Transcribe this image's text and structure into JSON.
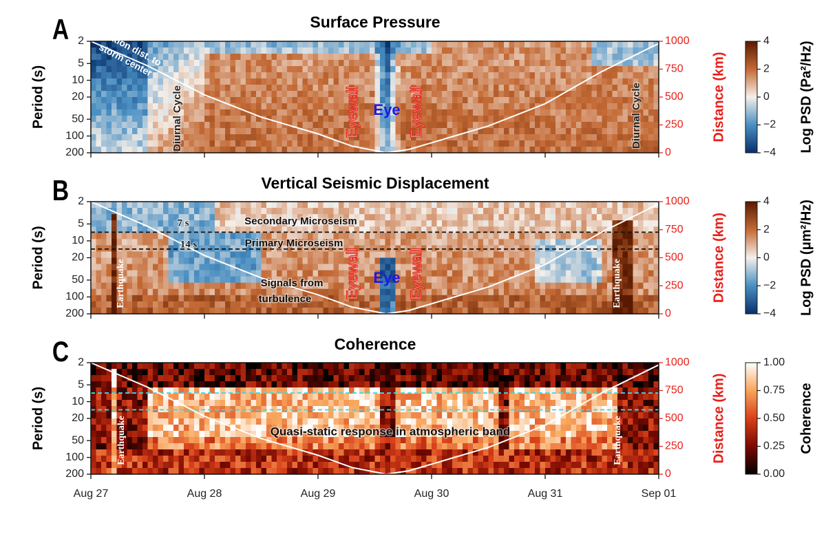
{
  "chart_data": [
    {
      "type": "spectrogram",
      "panel_label": "A",
      "title": "Surface Pressure",
      "ylabel": "Period (s)",
      "y2label": "Distance (km)",
      "log_scale": true,
      "ylim": [
        2,
        200
      ],
      "yticks": [
        2,
        5,
        10,
        20,
        50,
        100,
        200
      ],
      "y2lim": [
        0,
        1000
      ],
      "y2ticks": [
        0,
        250,
        500,
        750,
        1000
      ],
      "y2color": "#e8201a",
      "xlim": [
        0,
        5
      ],
      "clabel": "Log PSD (Pa²/Hz)",
      "clim": [
        -4,
        4
      ],
      "cticks": [
        {
          "value": -4,
          "label": "−4"
        },
        {
          "value": -2,
          "label": "−2"
        },
        0,
        2,
        4
      ],
      "colormap": [
        "#08306b",
        "#4a8fc2",
        "#f5efe9",
        "#c46a35",
        "#5a1a00"
      ],
      "series": [
        {
          "color": "#ffffff",
          "axis": "y2",
          "x": [
            0,
            0.5,
            1,
            1.5,
            2,
            2.3,
            2.6,
            2.8,
            3,
            3.5,
            4,
            4.5,
            5
          ],
          "values": [
            1000,
            780,
            520,
            320,
            170,
            60,
            0,
            30,
            90,
            240,
            440,
            730,
            980
          ]
        }
      ],
      "annotations": [
        {
          "text": "Station dist. to",
          "color": "#ffffff"
        },
        {
          "text": "storm center",
          "color": "#ffffff"
        },
        {
          "text": "Diurnal Cycle",
          "color": "#222222"
        },
        {
          "text": "Eyewall",
          "color": "#e8201a"
        },
        {
          "text": "Eye",
          "color": "#1a1ae6"
        },
        {
          "text": "Eyewall",
          "color": "#e8201a"
        },
        {
          "text": "Diurnal Cycle",
          "color": "#222222"
        }
      ]
    },
    {
      "type": "spectrogram",
      "panel_label": "B",
      "title": "Vertical Seismic Displacement",
      "ylabel": "Period (s)",
      "y2label": "Distance (km)",
      "log_scale": true,
      "ylim": [
        2,
        200
      ],
      "yticks": [
        2,
        5,
        10,
        20,
        50,
        100,
        200
      ],
      "y2lim": [
        0,
        1000
      ],
      "y2ticks": [
        0,
        250,
        500,
        750,
        1000
      ],
      "y2color": "#e8201a",
      "xlim": [
        0,
        5
      ],
      "clabel": "Log PSD (μm²/Hz)",
      "clim": [
        -4,
        4
      ],
      "cticks": [
        {
          "value": -4,
          "label": "−4"
        },
        {
          "value": -2,
          "label": "−2"
        },
        0,
        2,
        4
      ],
      "colormap": [
        "#08306b",
        "#4a8fc2",
        "#f5efe9",
        "#c46a35",
        "#5a1a00"
      ],
      "hlines": [
        7,
        14
      ],
      "hline_color": "#111111",
      "series": [
        {
          "color": "#ffffff",
          "axis": "y2",
          "x": [
            0,
            0.5,
            1,
            1.5,
            2,
            2.3,
            2.6,
            2.8,
            3,
            3.5,
            4,
            4.5,
            5
          ],
          "values": [
            1000,
            780,
            520,
            320,
            170,
            60,
            0,
            30,
            90,
            240,
            440,
            730,
            980
          ]
        }
      ],
      "annotations": [
        {
          "text": "7 s",
          "color": "#222222"
        },
        {
          "text": "14 s",
          "color": "#222222"
        },
        {
          "text": "Secondary Microseism",
          "color": "#111111"
        },
        {
          "text": "Primary Microseism",
          "color": "#111111"
        },
        {
          "text": "Earthquake",
          "color": "#ffffff"
        },
        {
          "text": "Signals from",
          "color": "#111111"
        },
        {
          "text": "turbulence",
          "color": "#111111"
        },
        {
          "text": "Eyewall",
          "color": "#e8201a"
        },
        {
          "text": "Eye",
          "color": "#1a1ae6"
        },
        {
          "text": "Eyewall",
          "color": "#e8201a"
        },
        {
          "text": "Earthquake",
          "color": "#ffffff"
        }
      ]
    },
    {
      "type": "spectrogram",
      "panel_label": "C",
      "title": "Coherence",
      "ylabel": "Period (s)",
      "y2label": "Distance (km)",
      "log_scale": true,
      "ylim": [
        2,
        200
      ],
      "yticks": [
        2,
        5,
        10,
        20,
        50,
        100,
        200
      ],
      "y2lim": [
        0,
        1000
      ],
      "y2ticks": [
        0,
        250,
        500,
        750,
        1000
      ],
      "y2color": "#e8201a",
      "xlim": [
        0,
        5
      ],
      "xticks": [
        {
          "value": 0,
          "label": "Aug 27"
        },
        {
          "value": 1,
          "label": "Aug 28"
        },
        {
          "value": 2,
          "label": "Aug 29"
        },
        {
          "value": 3,
          "label": "Aug 30"
        },
        {
          "value": 4,
          "label": "Aug 31"
        },
        {
          "value": 5,
          "label": "Sep 01"
        }
      ],
      "clabel": "Coherence",
      "clim": [
        0,
        1
      ],
      "cticks": [
        {
          "value": 0,
          "label": "0.00"
        },
        {
          "value": 0.25,
          "label": "0.25"
        },
        {
          "value": 0.5,
          "label": "0.50"
        },
        {
          "value": 0.75,
          "label": "0.75"
        },
        {
          "value": 1,
          "label": "1.00"
        }
      ],
      "colormap": [
        "#000000",
        "#7a0a00",
        "#d8401a",
        "#f8a45a",
        "#ffffff"
      ],
      "hlines": [
        7,
        14
      ],
      "hline_color": "#33dde8",
      "series": [
        {
          "color": "#ffffff",
          "axis": "y2",
          "x": [
            0,
            0.5,
            1,
            1.5,
            2,
            2.3,
            2.6,
            2.8,
            3,
            3.5,
            4,
            4.5,
            5
          ],
          "values": [
            1000,
            780,
            520,
            320,
            170,
            60,
            0,
            30,
            90,
            240,
            440,
            730,
            980
          ]
        }
      ],
      "annotations": [
        {
          "text": "Earthquake",
          "color": "#ffffff"
        },
        {
          "text": "Earthquake",
          "color": "#ffffff"
        },
        {
          "text": "Quasi-static response in atmospheric band",
          "color": "#111111"
        }
      ]
    }
  ]
}
